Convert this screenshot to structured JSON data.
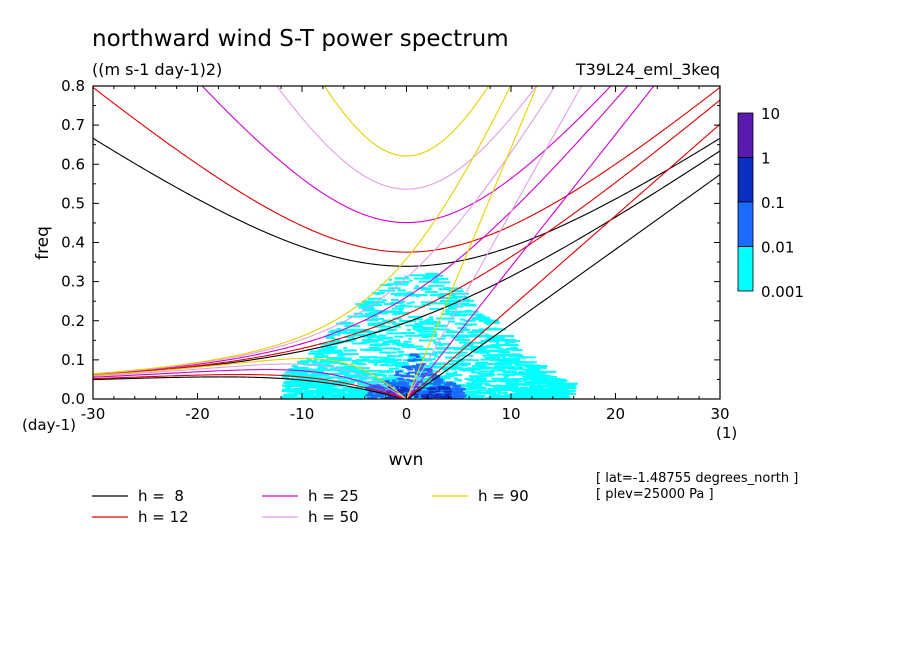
{
  "chart_data": {
    "type": "contour",
    "title": "northward wind S-T power spectrum",
    "units": "((m s-1 day-1)2)",
    "experiment": "T39L24_eml_3keq",
    "xlabel": "wvn",
    "ylabel": "freq",
    "xunit": "(1)",
    "yunit": "(day-1)",
    "xlim": [
      -30,
      30
    ],
    "ylim": [
      0,
      0.8
    ],
    "xticks": [
      -30,
      -20,
      -10,
      0,
      10,
      20,
      30
    ],
    "yticks": [
      0.0,
      0.1,
      0.2,
      0.3,
      0.4,
      0.5,
      0.6,
      0.7,
      0.8
    ],
    "colorbar": {
      "labels": [
        "10",
        "1",
        "0.1",
        "0.01",
        "0.001"
      ],
      "colors": [
        "#5a1ab0",
        "#0b2fbf",
        "#1c6cff",
        "#00ffff"
      ]
    },
    "dispersion_curves": [
      {
        "name": "h =  8",
        "h": 8,
        "color": "#000000"
      },
      {
        "name": "h = 12",
        "h": 12,
        "color": "#e00000"
      },
      {
        "name": "h = 25",
        "h": 25,
        "color": "#d000d0"
      },
      {
        "name": "h = 50",
        "h": 50,
        "color": "#e0a0e0"
      },
      {
        "name": "h = 90",
        "h": 90,
        "color": "#e8d000"
      }
    ],
    "info": [
      "[ lat=-1.48755 degrees_north ]",
      "[ plev=25000 Pa ]"
    ]
  }
}
